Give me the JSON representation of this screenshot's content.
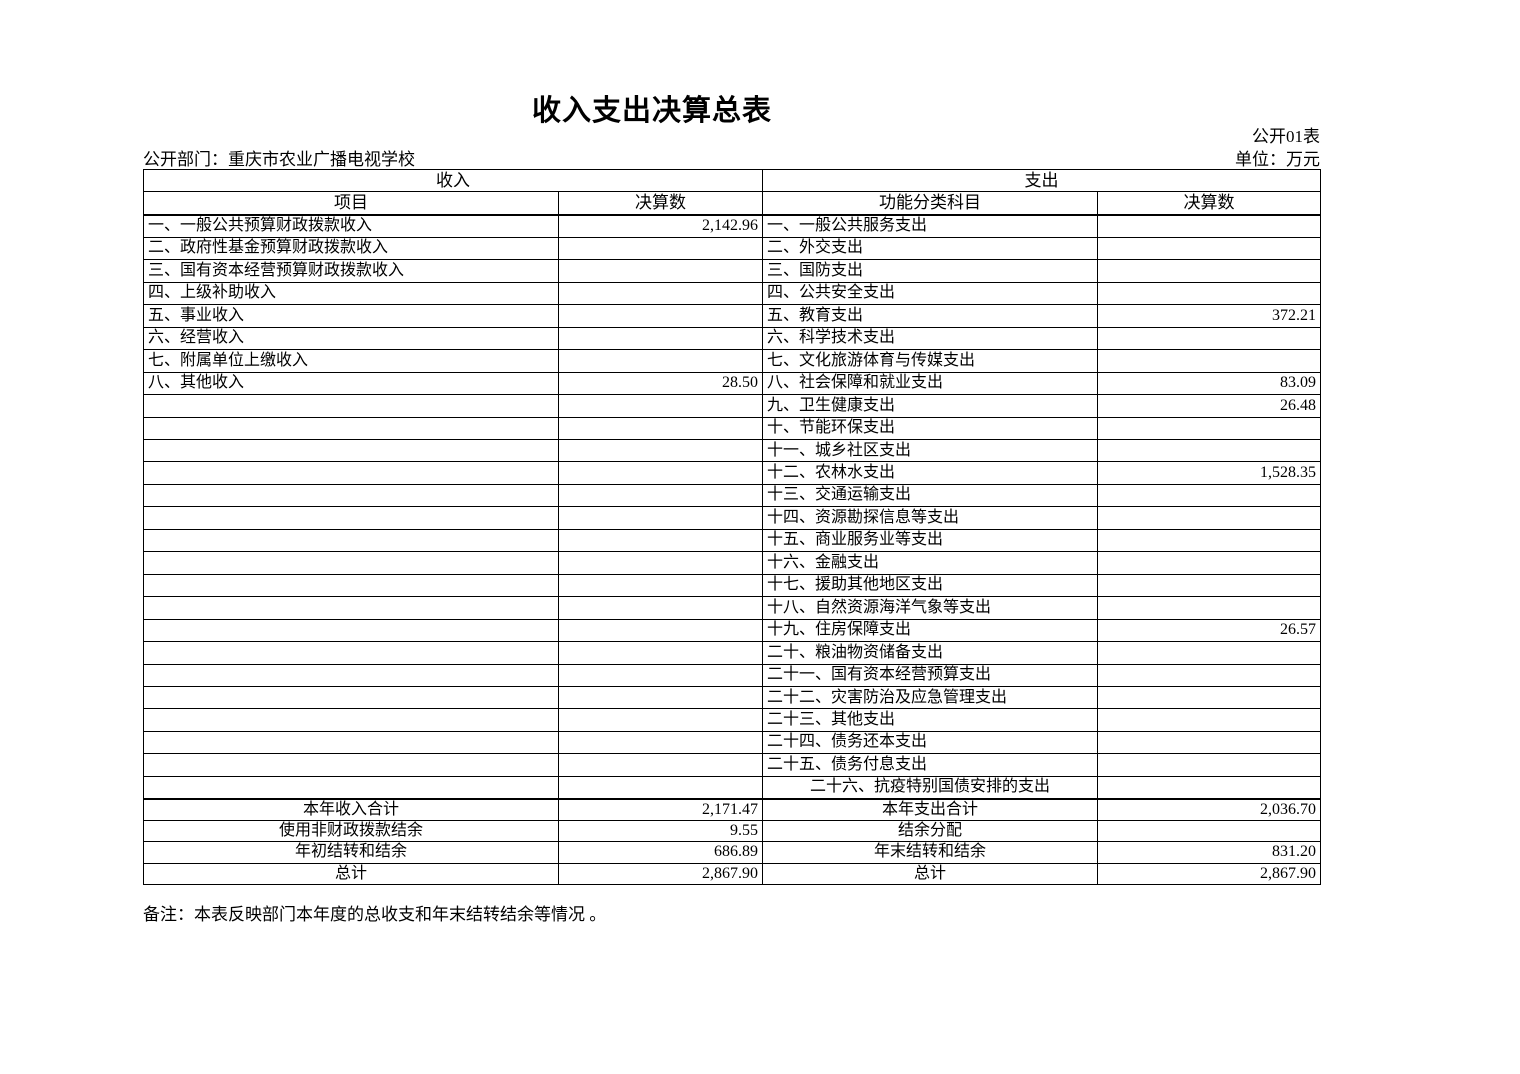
{
  "page": {
    "title": "收入支出决算总表",
    "table_code": "公开01表",
    "department_label": "公开部门：重庆市农业广播电视学校",
    "unit_label": "单位：万元",
    "note": "备注：本表反映部门本年度的总收支和年末结转结余等情况 。"
  },
  "table": {
    "section_headers": {
      "income": "收入",
      "expense": "支出"
    },
    "column_headers": {
      "income_item": "项目",
      "income_value": "决算数",
      "expense_item": "功能分类科目",
      "expense_value": "决算数"
    },
    "rows": [
      {
        "income_label": "一、一般公共预算财政拨款收入",
        "income_value": "2,142.96",
        "expense_label": "一、一般公共服务支出",
        "expense_value": ""
      },
      {
        "income_label": "二、政府性基金预算财政拨款收入",
        "income_value": "",
        "expense_label": "二、外交支出",
        "expense_value": ""
      },
      {
        "income_label": "三、国有资本经营预算财政拨款收入",
        "income_value": "",
        "expense_label": "三、国防支出",
        "expense_value": ""
      },
      {
        "income_label": "四、上级补助收入",
        "income_value": "",
        "expense_label": "四、公共安全支出",
        "expense_value": ""
      },
      {
        "income_label": "五、事业收入",
        "income_value": "",
        "expense_label": "五、教育支出",
        "expense_value": "372.21"
      },
      {
        "income_label": "六、经营收入",
        "income_value": "",
        "expense_label": "六、科学技术支出",
        "expense_value": ""
      },
      {
        "income_label": "七、附属单位上缴收入",
        "income_value": "",
        "expense_label": "七、文化旅游体育与传媒支出",
        "expense_value": ""
      },
      {
        "income_label": "八、其他收入",
        "income_value": "28.50",
        "expense_label": "八、社会保障和就业支出",
        "expense_value": "83.09"
      },
      {
        "income_label": "",
        "income_value": "",
        "expense_label": "九、卫生健康支出",
        "expense_value": "26.48"
      },
      {
        "income_label": "",
        "income_value": "",
        "expense_label": "十、节能环保支出",
        "expense_value": ""
      },
      {
        "income_label": "",
        "income_value": "",
        "expense_label": "十一、城乡社区支出",
        "expense_value": ""
      },
      {
        "income_label": "",
        "income_value": "",
        "expense_label": "十二、农林水支出",
        "expense_value": "1,528.35"
      },
      {
        "income_label": "",
        "income_value": "",
        "expense_label": "十三、交通运输支出",
        "expense_value": ""
      },
      {
        "income_label": "",
        "income_value": "",
        "expense_label": "十四、资源勘探信息等支出",
        "expense_value": ""
      },
      {
        "income_label": "",
        "income_value": "",
        "expense_label": "十五、商业服务业等支出",
        "expense_value": ""
      },
      {
        "income_label": "",
        "income_value": "",
        "expense_label": "十六、金融支出",
        "expense_value": ""
      },
      {
        "income_label": "",
        "income_value": "",
        "expense_label": "十七、援助其他地区支出",
        "expense_value": ""
      },
      {
        "income_label": "",
        "income_value": "",
        "expense_label": "十八、自然资源海洋气象等支出",
        "expense_value": ""
      },
      {
        "income_label": "",
        "income_value": "",
        "expense_label": "十九、住房保障支出",
        "expense_value": "26.57"
      },
      {
        "income_label": "",
        "income_value": "",
        "expense_label": "二十、粮油物资储备支出",
        "expense_value": ""
      },
      {
        "income_label": "",
        "income_value": "",
        "expense_label": "二十一、国有资本经营预算支出",
        "expense_value": ""
      },
      {
        "income_label": "",
        "income_value": "",
        "expense_label": "二十二、灾害防治及应急管理支出",
        "expense_value": ""
      },
      {
        "income_label": "",
        "income_value": "",
        "expense_label": "二十三、其他支出",
        "expense_value": ""
      },
      {
        "income_label": "",
        "income_value": "",
        "expense_label": "二十四、债务还本支出",
        "expense_value": ""
      },
      {
        "income_label": "",
        "income_value": "",
        "expense_label": "二十五、债务付息支出",
        "expense_value": ""
      },
      {
        "income_label": "",
        "income_value": "",
        "expense_label": "二十六、抗疫特别国债安排的支出",
        "expense_value": "",
        "expense_align": "center"
      }
    ],
    "summary_rows": [
      {
        "income_label": "本年收入合计",
        "income_value": "2,171.47",
        "expense_label": "本年支出合计",
        "expense_value": "2,036.70"
      },
      {
        "income_label": "使用非财政拨款结余",
        "income_value": "9.55",
        "expense_label": "结余分配",
        "expense_value": ""
      },
      {
        "income_label": "年初结转和结余",
        "income_value": "686.89",
        "expense_label": "年末结转和结余",
        "expense_value": "831.20"
      },
      {
        "income_label": "总计",
        "income_value": "2,867.90",
        "expense_label": "总计",
        "expense_value": "2,867.90"
      }
    ]
  },
  "colors": {
    "text": "#000000",
    "border": "#000000",
    "background": "#ffffff"
  }
}
